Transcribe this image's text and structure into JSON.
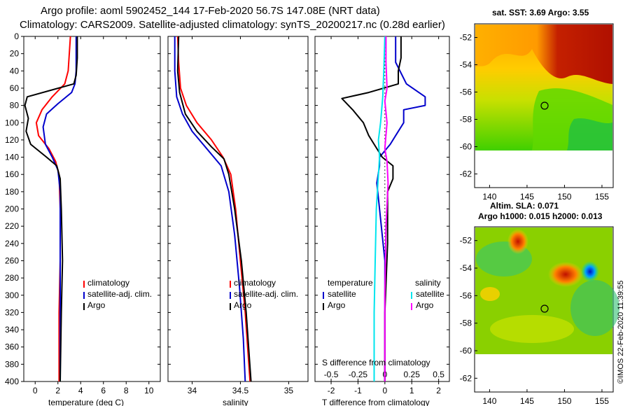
{
  "header": {
    "line1": "Argo profile: aoml 5902452_144 17-Feb-2020 56.7S 147.08E (NRT data)",
    "line2": "Climatology: CARS2009. Satellite-adjusted climatology: synTS_20200217.nc (0.28d earlier)"
  },
  "colors": {
    "climatology": "#ff0000",
    "satellite_adj": "#0000cc",
    "argo": "#000000",
    "satellite_sal": "#00e5ee",
    "argo_sal": "#ff00ff"
  },
  "chart_data": [
    {
      "type": "line",
      "id": "temperature",
      "xlabel": "temperature (deg C)",
      "ylabel": "",
      "xlim": [
        -1,
        11
      ],
      "ylim": [
        400,
        0
      ],
      "xticks": [
        0,
        2,
        4,
        6,
        8,
        10
      ],
      "xtick_labels": [
        "0",
        "2",
        "4",
        "6",
        "8",
        "10"
      ],
      "yticks": [
        0,
        20,
        40,
        60,
        80,
        100,
        120,
        140,
        160,
        180,
        200,
        220,
        240,
        260,
        280,
        300,
        320,
        340,
        360,
        380,
        400
      ],
      "ytick_labels": [
        "0",
        "20",
        "40",
        "60",
        "80",
        "100",
        "120",
        "140",
        "160",
        "180",
        "200",
        "220",
        "240",
        "260",
        "280",
        "300",
        "320",
        "340",
        "360",
        "380",
        "400"
      ],
      "legend": [
        "climatology",
        "satellite-adj. clim.",
        "Argo"
      ],
      "series": [
        {
          "name": "climatology",
          "color": "#ff0000",
          "points": [
            [
              3.1,
              0
            ],
            [
              3.0,
              20
            ],
            [
              2.9,
              40
            ],
            [
              2.6,
              55
            ],
            [
              1.5,
              70
            ],
            [
              0.6,
              85
            ],
            [
              0.1,
              100
            ],
            [
              0.3,
              115
            ],
            [
              1.2,
              130
            ],
            [
              1.8,
              145
            ],
            [
              2.1,
              160
            ],
            [
              2.2,
              200
            ],
            [
              2.2,
              260
            ],
            [
              2.1,
              320
            ],
            [
              2.1,
              400
            ]
          ]
        },
        {
          "name": "satellite-adj. clim.",
          "color": "#0000cc",
          "points": [
            [
              3.6,
              0
            ],
            [
              3.6,
              20
            ],
            [
              3.6,
              40
            ],
            [
              3.5,
              55
            ],
            [
              3.2,
              65
            ],
            [
              2.0,
              78
            ],
            [
              1.0,
              90
            ],
            [
              0.7,
              105
            ],
            [
              0.9,
              125
            ],
            [
              1.5,
              140
            ],
            [
              2.0,
              155
            ],
            [
              2.2,
              180
            ],
            [
              2.2,
              250
            ],
            [
              2.2,
              320
            ],
            [
              2.2,
              400
            ]
          ]
        },
        {
          "name": "Argo",
          "color": "#000000",
          "points": [
            [
              3.7,
              0
            ],
            [
              3.7,
              25
            ],
            [
              3.6,
              45
            ],
            [
              3.4,
              55
            ],
            [
              1.5,
              62
            ],
            [
              -0.7,
              70
            ],
            [
              -0.9,
              80
            ],
            [
              -0.6,
              95
            ],
            [
              -0.8,
              110
            ],
            [
              -0.4,
              125
            ],
            [
              1.0,
              140
            ],
            [
              1.9,
              150
            ],
            [
              2.2,
              165
            ],
            [
              2.3,
              200
            ],
            [
              2.4,
              260
            ],
            [
              2.3,
              320
            ],
            [
              2.2,
              400
            ]
          ]
        }
      ]
    },
    {
      "type": "line",
      "id": "salinity",
      "xlabel": "salinity",
      "ylabel": "",
      "xlim": [
        33.75,
        35.2
      ],
      "ylim": [
        400,
        0
      ],
      "xticks": [
        34,
        34.5,
        35
      ],
      "xtick_labels": [
        "34",
        "34.5",
        "35"
      ],
      "legend": [
        "climatology",
        "satellite-adj. clim.",
        "Argo"
      ],
      "series": [
        {
          "name": "climatology",
          "color": "#ff0000",
          "points": [
            [
              33.85,
              0
            ],
            [
              33.86,
              30
            ],
            [
              33.88,
              60
            ],
            [
              33.94,
              80
            ],
            [
              34.05,
              100
            ],
            [
              34.2,
              120
            ],
            [
              34.32,
              140
            ],
            [
              34.4,
              160
            ],
            [
              34.45,
              200
            ],
            [
              34.5,
              260
            ],
            [
              34.55,
              320
            ],
            [
              34.6,
              400
            ]
          ]
        },
        {
          "name": "satellite-adj. clim.",
          "color": "#0000cc",
          "points": [
            [
              33.82,
              0
            ],
            [
              33.82,
              40
            ],
            [
              33.84,
              70
            ],
            [
              33.9,
              90
            ],
            [
              34.0,
              110
            ],
            [
              34.15,
              130
            ],
            [
              34.3,
              150
            ],
            [
              34.38,
              180
            ],
            [
              34.44,
              230
            ],
            [
              34.49,
              290
            ],
            [
              34.53,
              350
            ],
            [
              34.55,
              400
            ]
          ]
        },
        {
          "name": "Argo",
          "color": "#000000",
          "points": [
            [
              33.86,
              0
            ],
            [
              33.85,
              40
            ],
            [
              33.87,
              65
            ],
            [
              33.93,
              90
            ],
            [
              34.05,
              110
            ],
            [
              34.2,
              128
            ],
            [
              34.33,
              142
            ],
            [
              34.38,
              160
            ],
            [
              34.44,
              200
            ],
            [
              34.51,
              260
            ],
            [
              34.56,
              320
            ],
            [
              34.61,
              400
            ]
          ]
        }
      ]
    },
    {
      "type": "line",
      "id": "difference",
      "xlabel": "T difference from climatology",
      "x2label": "S difference from climatology",
      "xlim": [
        -2.6,
        2.4
      ],
      "ylim": [
        400,
        0
      ],
      "xticks": [
        -2,
        -1,
        0,
        1,
        2
      ],
      "xtick_labels": [
        "-2",
        "-1",
        "0",
        "1",
        "2"
      ],
      "x2ticks": [
        -0.5,
        -0.25,
        0,
        0.25,
        0.5
      ],
      "x2tick_labels": [
        "-0.5",
        "-0.25",
        "0",
        "0.25",
        "0.5"
      ],
      "x2lim": [
        -0.65,
        0.6
      ],
      "legend_groups": [
        {
          "title": "temperature",
          "entries": [
            "satellite",
            "Argo"
          ]
        },
        {
          "title": "salinity",
          "entries": [
            "satellite",
            "Argo"
          ]
        }
      ],
      "series": [
        {
          "name": "temperature satellite",
          "color": "#0000cc",
          "axis": "T",
          "points": [
            [
              0.4,
              0
            ],
            [
              0.4,
              30
            ],
            [
              0.8,
              55
            ],
            [
              1.5,
              70
            ],
            [
              1.5,
              80
            ],
            [
              0.7,
              85
            ],
            [
              0.7,
              100
            ],
            [
              0.4,
              115
            ],
            [
              0.2,
              125
            ],
            [
              -0.2,
              140
            ],
            [
              -0.2,
              150
            ],
            [
              -0.3,
              170
            ],
            [
              -0.2,
              200
            ],
            [
              -0.1,
              230
            ],
            [
              0,
              260
            ],
            [
              0,
              320
            ],
            [
              0,
              400
            ]
          ]
        },
        {
          "name": "temperature Argo",
          "color": "#000000",
          "axis": "T",
          "points": [
            [
              0.6,
              0
            ],
            [
              0.6,
              25
            ],
            [
              0.5,
              40
            ],
            [
              0.5,
              55
            ],
            [
              -0.6,
              65
            ],
            [
              -1.6,
              72
            ],
            [
              -1.2,
              85
            ],
            [
              -0.8,
              100
            ],
            [
              -0.6,
              115
            ],
            [
              -0.4,
              125
            ],
            [
              -0.1,
              140
            ],
            [
              0.3,
              150
            ],
            [
              0.3,
              165
            ],
            [
              0.1,
              180
            ],
            [
              0.1,
              240
            ],
            [
              0,
              320
            ],
            [
              0,
              400
            ]
          ]
        },
        {
          "name": "salinity satellite",
          "color": "#00e5ee",
          "axis": "S",
          "points": [
            [
              0,
              0
            ],
            [
              -0.01,
              40
            ],
            [
              -0.02,
              70
            ],
            [
              -0.04,
              100
            ],
            [
              -0.06,
              120
            ],
            [
              -0.05,
              140
            ],
            [
              -0.08,
              200
            ],
            [
              -0.09,
              260
            ],
            [
              -0.1,
              320
            ],
            [
              -0.1,
              400
            ]
          ]
        },
        {
          "name": "salinity Argo",
          "color": "#ff00ff",
          "axis": "S",
          "points": [
            [
              0.01,
              0
            ],
            [
              0.01,
              30
            ],
            [
              0.02,
              60
            ],
            [
              0.0,
              75
            ],
            [
              0.02,
              100
            ],
            [
              0.0,
              130
            ],
            [
              0.02,
              145
            ],
            [
              0.03,
              170
            ],
            [
              0.01,
              220
            ],
            [
              0,
              300
            ],
            [
              0,
              400
            ]
          ]
        }
      ]
    }
  ],
  "map_sst": {
    "title": "sat. SST: 3.69  Argo: 3.55",
    "xticks": [
      "140",
      "145",
      "150",
      "155"
    ],
    "yticks": [
      "-52",
      "-54",
      "-56",
      "-58",
      "-60",
      "-62"
    ],
    "lon_range": [
      138,
      156.5
    ],
    "lat_range": [
      -63,
      -51
    ]
  },
  "map_sla": {
    "title1": "Altim. SLA: 0.071",
    "title2": "Argo h1000: 0.015  h2000: 0.013",
    "xticks": [
      "140",
      "145",
      "150",
      "155"
    ],
    "yticks": [
      "-52",
      "-54",
      "-56",
      "-58",
      "-60",
      "-62"
    ],
    "lon_range": [
      138,
      156.5
    ],
    "lat_range": [
      -63,
      -51
    ]
  },
  "argo_position": {
    "lon": 147.08,
    "lat": -56.7
  },
  "stamp": "©IMOS 22-Feb-2020 11:39:55"
}
